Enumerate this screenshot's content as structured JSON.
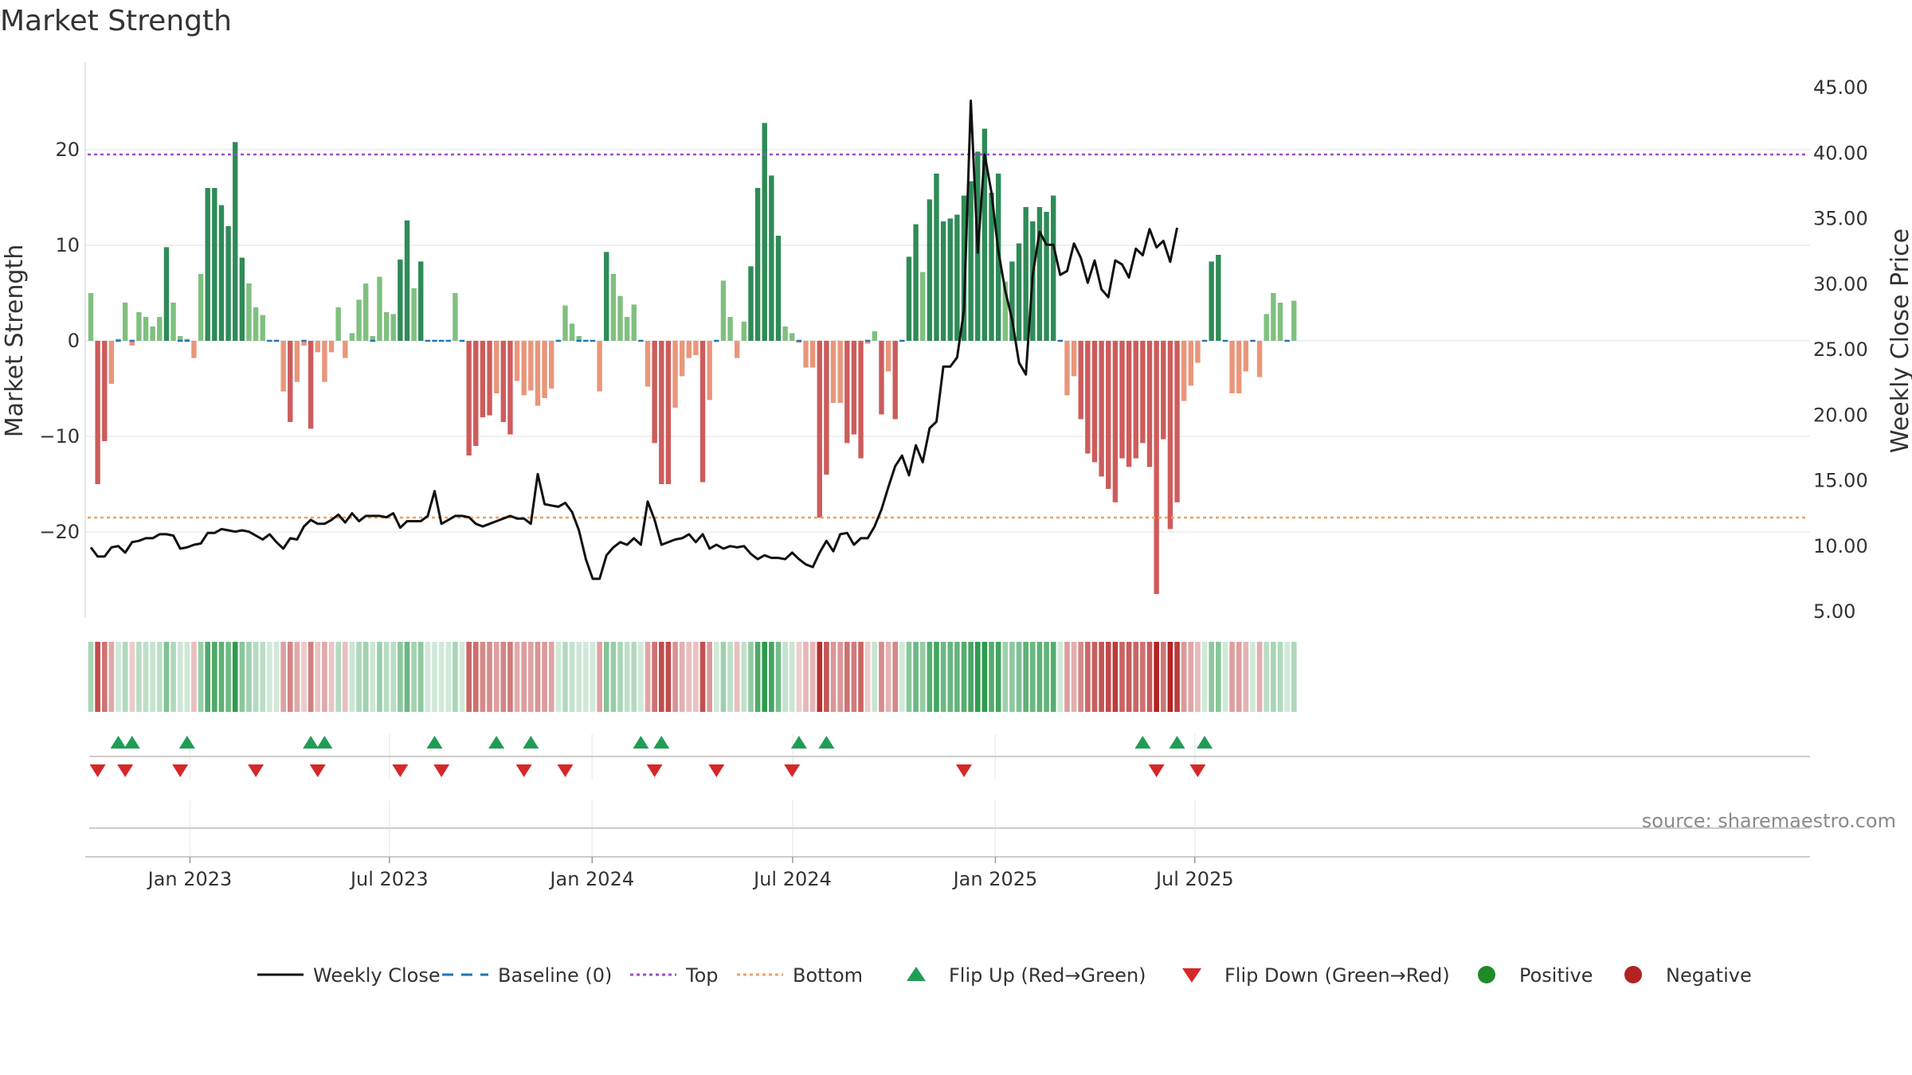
{
  "chart_data": {
    "type": "bar",
    "title": "Market Strength",
    "ylabel": "Market Strength",
    "y2label": "Weekly Close Price",
    "ylim": [
      -29,
      29
    ],
    "y2lim": [
      2.7,
      48.5
    ],
    "yticks": [
      {
        "value": 20,
        "label": "20"
      },
      {
        "value": 10,
        "label": "10"
      },
      {
        "value": 0,
        "label": "0"
      },
      {
        "value": -10,
        "label": "−10"
      },
      {
        "value": -20,
        "label": "−20"
      }
    ],
    "y2ticks": [
      {
        "value": 45,
        "label": "45.00"
      },
      {
        "value": 40,
        "label": "40.00"
      },
      {
        "value": 35,
        "label": "35.00"
      },
      {
        "value": 30,
        "label": "30.00"
      },
      {
        "value": 25,
        "label": "25.00"
      },
      {
        "value": 20,
        "label": "20.00"
      },
      {
        "value": 15,
        "label": "15.00"
      },
      {
        "value": 10,
        "label": "10.00"
      },
      {
        "value": 5,
        "label": "5.00"
      }
    ],
    "x_start": "2022-10-03",
    "x_end": "2025-09-29",
    "xticks": [
      {
        "date": "2023-01-01",
        "label": "Jan 2023"
      },
      {
        "date": "2023-07-01",
        "label": "Jul 2023"
      },
      {
        "date": "2024-01-01",
        "label": "Jan 2024"
      },
      {
        "date": "2024-07-01",
        "label": "Jul 2024"
      },
      {
        "date": "2025-01-01",
        "label": "Jan 2025"
      },
      {
        "date": "2025-07-01",
        "label": "Jul 2025"
      }
    ],
    "top_level": 19.5,
    "bottom_level": -18.5,
    "strength": [
      5,
      -15,
      -10.5,
      -4.5,
      0.2,
      4,
      -0.5,
      3,
      2.5,
      1.5,
      2.5,
      9.8,
      4,
      0.5,
      0.2,
      -1.8,
      7,
      16,
      16,
      14.2,
      12,
      20.8,
      8.7,
      6,
      3.5,
      2.7,
      0,
      0,
      -5.3,
      -8.5,
      -4.3,
      -0.5,
      -9.2,
      -1.2,
      -4.3,
      -1.2,
      3.5,
      -1.8,
      0.8,
      4.3,
      6,
      0.5,
      6.7,
      3,
      2.8,
      8.5,
      12.6,
      5.5,
      8.3,
      0,
      0,
      0,
      0,
      5,
      0,
      -12,
      -11,
      -8,
      -7.8,
      -5.5,
      -8.5,
      -9.8,
      -4.2,
      -5.7,
      -5.2,
      -6.8,
      -6,
      -5,
      0,
      3.7,
      1.8,
      0.5,
      0,
      0,
      -5.3,
      9.3,
      7,
      4.7,
      2.5,
      3.8,
      0,
      -4.8,
      -10.7,
      -15,
      -15,
      -7,
      -3.7,
      -1.8,
      -1.5,
      -14.8,
      -6.2,
      0,
      6.3,
      2.5,
      -1.8,
      2,
      7.8,
      16,
      22.8,
      17.3,
      11,
      1.5,
      0.8,
      -0.2,
      -2.8,
      -2.8,
      -18.5,
      -14,
      -6.5,
      -6.5,
      -10.7,
      -9.8,
      -12.3,
      -0.3,
      1,
      -7.7,
      -3.2,
      -8.2,
      0,
      8.8,
      12.2,
      7.2,
      14.8,
      17.5,
      12.5,
      12.8,
      13.2,
      15.2,
      16.7,
      19.8,
      22.2,
      15.5,
      17.5,
      6.2,
      8.3,
      10.2,
      14,
      12.5,
      14,
      13.5,
      15.2,
      0,
      -5.7,
      -3.7,
      -8.2,
      -11.8,
      -12.7,
      -14.2,
      -15.5,
      -16.9,
      -12.3,
      -13.2,
      -12.3,
      -10.7,
      -13.2,
      -26.5,
      -10.3,
      -19.7,
      -16.9,
      -6.3,
      -4.7,
      -2.3,
      0,
      8.3,
      9,
      0,
      -5.5,
      -5.5,
      -3.2,
      0,
      -3.8,
      2.8,
      5,
      4,
      0,
      4.2
    ],
    "price": [
      9.9,
      9.2,
      9.2,
      9.9,
      10,
      9.5,
      10.3,
      10.4,
      10.6,
      10.6,
      10.9,
      10.9,
      10.8,
      9.8,
      9.9,
      10.1,
      10.2,
      11,
      11,
      11.3,
      11.2,
      11.1,
      11.2,
      11.1,
      10.8,
      10.5,
      10.9,
      10.3,
      9.8,
      10.6,
      10.5,
      11.5,
      12,
      11.7,
      11.7,
      12,
      12.4,
      11.8,
      12.5,
      11.9,
      12.3,
      12.3,
      12.3,
      12.2,
      12.5,
      11.4,
      11.9,
      11.9,
      11.9,
      12.3,
      14.2,
      11.7,
      12,
      12.3,
      12.3,
      12.2,
      11.7,
      11.5,
      11.7,
      11.9,
      12.1,
      12.3,
      12.1,
      12.1,
      11.7,
      15.5,
      13.2,
      13.1,
      13,
      13.3,
      12.6,
      11.2,
      9,
      7.5,
      7.5,
      9.3,
      9.9,
      10.3,
      10.1,
      10.6,
      10.1,
      13.4,
      12,
      10.1,
      10.3,
      10.5,
      10.6,
      10.9,
      10.3,
      10.9,
      9.8,
      10.1,
      9.8,
      10,
      9.9,
      10,
      9.4,
      9,
      9.3,
      9.1,
      9.1,
      9,
      9.5,
      9,
      8.6,
      8.4,
      9.5,
      10.4,
      9.6,
      10.9,
      11,
      10.1,
      10.6,
      10.6,
      11.5,
      12.8,
      14.5,
      16.1,
      16.9,
      15.4,
      17.7,
      16.4,
      19,
      19.5,
      23.7,
      23.7,
      24.4,
      28,
      44,
      32.4,
      39.9,
      37,
      32.5,
      29.5,
      27.3,
      24,
      23.1,
      30.7,
      34,
      33,
      33,
      30.7,
      31,
      33.1,
      32,
      30.1,
      31.8,
      29.6,
      29,
      31.8,
      31.5,
      30.5,
      32.7,
      32.2,
      34.2,
      32.8,
      33.3,
      31.7,
      34.3
    ],
    "mid_panel_label": "",
    "flip_up_idx": [
      4,
      6,
      14,
      32,
      34,
      50,
      59,
      64,
      80,
      83,
      103,
      107,
      153,
      158,
      162
    ],
    "flip_down_idx": [
      1,
      5,
      13,
      24,
      33,
      45,
      51,
      63,
      69,
      82,
      91,
      102,
      127,
      155,
      161
    ],
    "legend": [
      {
        "kind": "line",
        "label": "Weekly Close",
        "color": "#111111"
      },
      {
        "kind": "dash",
        "label": "Baseline (0)",
        "color": "#1f77b4"
      },
      {
        "kind": "dotted",
        "label": "Top",
        "color": "#9b4dca"
      },
      {
        "kind": "dotted",
        "label": "Bottom",
        "color": "#f0a060"
      },
      {
        "kind": "tri-up",
        "label": "Flip Up (Red→Green)",
        "color": "#1f9d55"
      },
      {
        "kind": "tri-down",
        "label": "Flip Down (Green→Red)",
        "color": "#d62728"
      },
      {
        "kind": "dot",
        "label": "Positive",
        "color": "#1f8a2a"
      },
      {
        "kind": "dot",
        "label": "Negative",
        "color": "#b22222"
      }
    ],
    "colors": {
      "pos_strong": "#2e8b57",
      "pos_weak": "#7fc07f",
      "neg_strong": "#cd5c5c",
      "neg_weak": "#e9967a",
      "baseline": "#1f77b4",
      "top": "#9b4dca",
      "bottom": "#f0a060",
      "price": "#111111",
      "flip_up": "#1f9d55",
      "flip_down": "#d62728"
    },
    "source": "source: sharemaestro.com"
  }
}
